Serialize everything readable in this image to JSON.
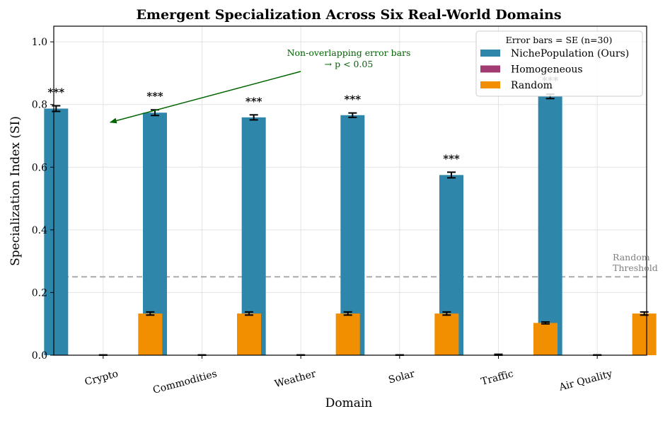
{
  "chart_data": {
    "type": "bar",
    "title": "Emergent Specialization Across Six Real-World Domains",
    "xlabel": "Domain",
    "ylabel": "Specialization Index (SI)",
    "ylim": [
      0,
      1.05
    ],
    "yticks": [
      0.0,
      0.2,
      0.4,
      0.6,
      0.8,
      1.0
    ],
    "ytick_labels": [
      "0.0",
      "0.2",
      "0.4",
      "0.6",
      "0.8",
      "1.0"
    ],
    "grid": true,
    "categories": [
      "Crypto",
      "Commodities",
      "Weather",
      "Solar",
      "Traffic",
      "Air Quality"
    ],
    "series": [
      {
        "name": "NichePopulation (Ours)",
        "color": "#2e86ab",
        "values": [
          0.787,
          0.774,
          0.759,
          0.766,
          0.575,
          0.826
        ],
        "errors": [
          0.009,
          0.009,
          0.008,
          0.007,
          0.009,
          0.007
        ],
        "significance": [
          "***",
          "***",
          "***",
          "***",
          "***",
          "***"
        ]
      },
      {
        "name": "Homogeneous",
        "color": "#a23b72",
        "values": [
          0.0,
          0.0,
          0.0,
          0.0,
          0.001,
          0.0
        ],
        "errors": [
          0.001,
          0.001,
          0.001,
          0.001,
          0.002,
          0.001
        ]
      },
      {
        "name": "Random",
        "color": "#f18f01",
        "values": [
          0.133,
          0.133,
          0.133,
          0.133,
          0.103,
          0.133
        ],
        "errors": [
          0.005,
          0.005,
          0.005,
          0.005,
          0.003,
          0.005
        ]
      }
    ],
    "legend": {
      "title": "Error bars = SE (n=30)",
      "position": "top-right"
    },
    "reference_line": {
      "y": 0.25,
      "label_line1": "Random",
      "label_line2": "Threshold",
      "color": "#aaaaaa"
    },
    "annotation": {
      "line1": "Non-overlapping error bars",
      "line2": "→ p < 0.05",
      "color": "#006400",
      "points_to_category": "Crypto",
      "points_to_y": 0.75
    }
  }
}
